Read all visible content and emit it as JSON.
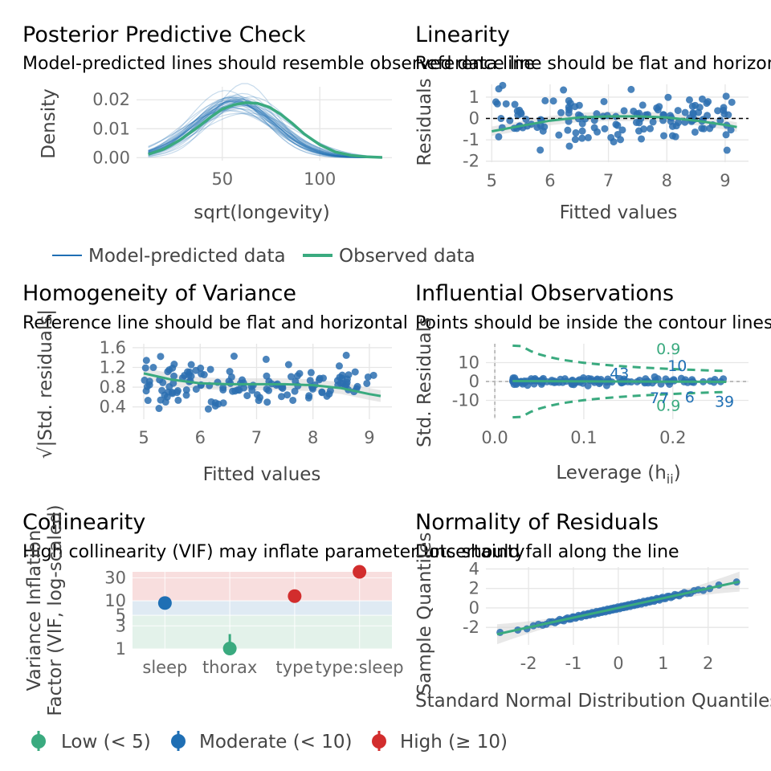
{
  "colors": {
    "predicted": "#1f6fb4",
    "observed": "#3aaa7f",
    "points": "#2c6fb0",
    "band": "#d9d9d9",
    "low": "#3aaa7f",
    "moderate": "#1f6fb4",
    "high": "#d22d2d",
    "zone_low": "#e3f2ea",
    "zone_mod": "#dfeaf3",
    "zone_high": "#f8dede"
  },
  "panels": {
    "ppc": {
      "title": "Posterior Predictive Check",
      "subtitle": "Model-predicted lines should resemble observed data line",
      "xlabel": "sqrt(longevity)",
      "ylabel": "Density",
      "xlim": [
        6,
        137
      ],
      "ylim": [
        -0.001,
        0.0245
      ],
      "xticks": [
        50,
        100
      ],
      "yticks": [
        0.0,
        0.01,
        0.02
      ],
      "ytick_labels": [
        "0.00",
        "0.01",
        "0.02"
      ],
      "legend": [
        "Model-predicted data",
        "Observed data"
      ],
      "observed": {
        "x": [
          12,
          20,
          28,
          36,
          44,
          50,
          56,
          62,
          68,
          74,
          80,
          86,
          92,
          100,
          108,
          116,
          124,
          132
        ],
        "y": [
          0.0012,
          0.003,
          0.006,
          0.0098,
          0.014,
          0.0168,
          0.0183,
          0.019,
          0.0188,
          0.0175,
          0.015,
          0.0118,
          0.0082,
          0.0045,
          0.002,
          0.0008,
          0.0003,
          0.0001
        ]
      },
      "n_simulations": 40
    },
    "lin": {
      "title": "Linearity",
      "subtitle": "Reference line should be flat and horizontal",
      "xlabel": "Fitted values",
      "ylabel": "Residuals",
      "xlim": [
        4.9,
        9.4
      ],
      "ylim": [
        -2.05,
        1.6
      ],
      "xticks": [
        5,
        6,
        7,
        8,
        9
      ],
      "yticks": [
        -2,
        -1,
        0,
        1
      ],
      "smooth": {
        "x": [
          5.0,
          5.5,
          6.0,
          6.5,
          7.0,
          7.5,
          8.0,
          8.5,
          9.0,
          9.2
        ],
        "y": [
          -0.6,
          -0.35,
          -0.1,
          0.05,
          0.1,
          0.1,
          0.05,
          -0.1,
          -0.3,
          -0.4
        ]
      }
    },
    "hom": {
      "title": "Homogeneity of Variance",
      "subtitle": "Reference line should be flat and horizontal",
      "xlabel": "Fitted values",
      "ylabel": "√|Std. residuals|",
      "xlim": [
        4.8,
        9.4
      ],
      "ylim": [
        0.15,
        1.68
      ],
      "xticks": [
        5,
        6,
        7,
        8,
        9
      ],
      "yticks": [
        0.4,
        0.8,
        1.2,
        1.6
      ],
      "ytick_labels": [
        "0.4",
        "0.8",
        "1.2",
        "1.6"
      ],
      "smooth": {
        "x": [
          5.0,
          5.5,
          6.0,
          6.5,
          7.0,
          7.5,
          8.0,
          8.5,
          9.0,
          9.2
        ],
        "y": [
          1.08,
          0.95,
          0.88,
          0.86,
          0.86,
          0.86,
          0.84,
          0.78,
          0.66,
          0.62
        ]
      }
    },
    "inf": {
      "title": "Influential Observations",
      "subtitle": "Points should be inside the contour lines",
      "xlabel": "Leverage (h",
      "xlabel_sub": "ii",
      "xlabel_close": ")",
      "ylabel": "Std. Residuals",
      "xlim": [
        -0.01,
        0.285
      ],
      "ylim": [
        -20,
        20
      ],
      "xticks": [
        0.0,
        0.1,
        0.2
      ],
      "xtick_labels": [
        "0.0",
        "0.1",
        "0.2"
      ],
      "yticks": [
        -10,
        0,
        10
      ],
      "contour_labels": [
        "0.9",
        "0.9"
      ],
      "point_labels": [
        {
          "text": "43",
          "x": 0.14,
          "y": 4.5
        },
        {
          "text": "10",
          "x": 0.205,
          "y": 8.5
        },
        {
          "text": "77",
          "x": 0.185,
          "y": -8.5
        },
        {
          "text": "6",
          "x": 0.219,
          "y": -8
        },
        {
          "text": "39",
          "x": 0.258,
          "y": -10.5
        }
      ]
    },
    "col": {
      "title": "Collinearity",
      "subtitle": "High collinearity (VIF) may inflate parameter uncertainty",
      "ylabel": "Variance Inflation",
      "ylabel2": "Factor (VIF, log-scaled)",
      "categories": [
        "sleep",
        "thorax",
        "type",
        "type:sleep"
      ],
      "vif": [
        9,
        1.02,
        12.5,
        40
      ],
      "status": [
        "moderate",
        "low",
        "high",
        "high"
      ],
      "ylim": [
        1,
        40
      ],
      "yticks": [
        1,
        3,
        5,
        10,
        30
      ],
      "ytick_labels": [
        "1",
        "3",
        "5",
        "10",
        "30"
      ],
      "legend": [
        "Low (< 5)",
        "Moderate (< 10)",
        "High (≥ 10)"
      ]
    },
    "norm": {
      "title": "Normality of Residuals",
      "subtitle": "Dots should fall along the line",
      "xlabel": "Standard Normal Distribution Quantiles",
      "ylabel": "Sample Quantiles",
      "xlim": [
        -2.95,
        2.9
      ],
      "ylim": [
        -3.8,
        4.2
      ],
      "xticks": [
        -2,
        -1,
        0,
        1,
        2
      ],
      "yticks": [
        -2,
        0,
        2,
        4
      ]
    }
  }
}
